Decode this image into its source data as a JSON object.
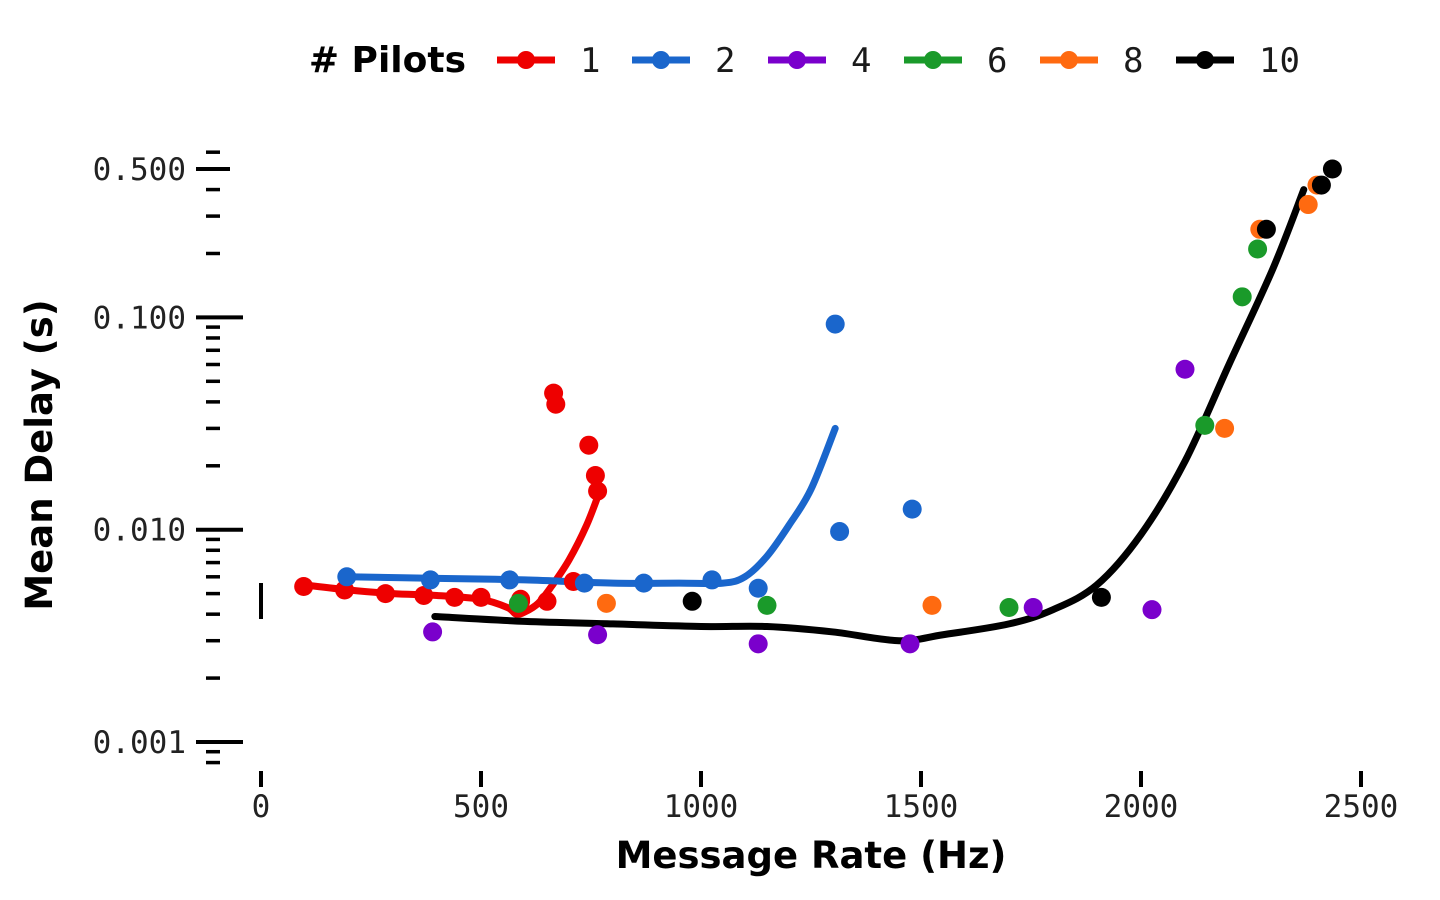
{
  "chart_data": {
    "type": "scatter",
    "xlabel": "Message Rate (Hz)",
    "ylabel": "Mean Delay (s)",
    "xlim": [
      0,
      2500
    ],
    "ylim": [
      0.001,
      0.5
    ],
    "y_scale": "log",
    "grid": false,
    "legend": {
      "title": "# Pilots",
      "placement": "top"
    },
    "x_ticks": [
      0,
      500,
      1000,
      1500,
      2000,
      2500
    ],
    "x_tick_labels": [
      "0",
      "500",
      "1000",
      "1500",
      "2000",
      "2500"
    ],
    "y_ticks": [
      0.5,
      0.1,
      0.01,
      0.001
    ],
    "y_tick_labels": [
      "0.500",
      "0.100",
      "0.010",
      "0.001"
    ],
    "series": [
      {
        "name": "1",
        "color": "#ee0000",
        "points": [
          [
            97,
            0.0054
          ],
          [
            190,
            0.0052
          ],
          [
            283,
            0.005
          ],
          [
            370,
            0.0049
          ],
          [
            440,
            0.0048
          ],
          [
            500,
            0.0048
          ],
          [
            590,
            0.0046
          ],
          [
            590,
            0.0047
          ],
          [
            650,
            0.0046
          ],
          [
            710,
            0.0057
          ],
          [
            665,
            0.044
          ],
          [
            670,
            0.039
          ],
          [
            745,
            0.025
          ],
          [
            760,
            0.018
          ],
          [
            765,
            0.0152
          ]
        ],
        "fit": [
          [
            97,
            0.0055
          ],
          [
            200,
            0.0052
          ],
          [
            300,
            0.005
          ],
          [
            400,
            0.0049
          ],
          [
            500,
            0.0047
          ],
          [
            560,
            0.0043
          ],
          [
            580,
            0.004
          ],
          [
            600,
            0.0041
          ],
          [
            630,
            0.0045
          ],
          [
            660,
            0.0054
          ],
          [
            700,
            0.0072
          ],
          [
            740,
            0.0105
          ],
          [
            770,
            0.0152
          ]
        ]
      },
      {
        "name": "2",
        "color": "#1a66cc",
        "points": [
          [
            195,
            0.006
          ],
          [
            385,
            0.0058
          ],
          [
            565,
            0.0058
          ],
          [
            735,
            0.0056
          ],
          [
            870,
            0.0056
          ],
          [
            1025,
            0.0058
          ],
          [
            1130,
            0.0053
          ],
          [
            1305,
            0.093
          ],
          [
            1315,
            0.0098
          ],
          [
            1480,
            0.0125
          ]
        ],
        "fit": [
          [
            195,
            0.006
          ],
          [
            400,
            0.0059
          ],
          [
            600,
            0.0058
          ],
          [
            800,
            0.0056
          ],
          [
            950,
            0.0056
          ],
          [
            1050,
            0.0056
          ],
          [
            1100,
            0.006
          ],
          [
            1150,
            0.0075
          ],
          [
            1200,
            0.0105
          ],
          [
            1250,
            0.0155
          ],
          [
            1305,
            0.03
          ]
        ]
      },
      {
        "name": "4",
        "color": "#7a00cc",
        "points": [
          [
            390,
            0.0033
          ],
          [
            765,
            0.0032
          ],
          [
            1130,
            0.0029
          ],
          [
            1475,
            0.0029
          ],
          [
            1755,
            0.0043
          ],
          [
            2025,
            0.0042
          ],
          [
            2100,
            0.057
          ]
        ]
      },
      {
        "name": "6",
        "color": "#1a9a2a",
        "points": [
          [
            585,
            0.0045
          ],
          [
            1150,
            0.0044
          ],
          [
            1700,
            0.0043
          ],
          [
            2145,
            0.031
          ],
          [
            2230,
            0.125
          ],
          [
            2265,
            0.21
          ]
        ]
      },
      {
        "name": "8",
        "color": "#ff6a10",
        "points": [
          [
            785,
            0.0045
          ],
          [
            1525,
            0.0044
          ],
          [
            2190,
            0.03
          ],
          [
            2270,
            0.26
          ],
          [
            2380,
            0.34
          ],
          [
            2400,
            0.42
          ]
        ]
      },
      {
        "name": "10",
        "color": "#000000",
        "points": [
          [
            980,
            0.0046
          ],
          [
            1910,
            0.0048
          ],
          [
            2285,
            0.26
          ],
          [
            2410,
            0.42
          ],
          [
            2435,
            0.5
          ]
        ],
        "fit": [
          [
            395,
            0.0039
          ],
          [
            600,
            0.0037
          ],
          [
            800,
            0.0036
          ],
          [
            1000,
            0.0035
          ],
          [
            1150,
            0.0035
          ],
          [
            1300,
            0.0033
          ],
          [
            1450,
            0.003
          ],
          [
            1550,
            0.0032
          ],
          [
            1700,
            0.0036
          ],
          [
            1800,
            0.0042
          ],
          [
            1900,
            0.0055
          ],
          [
            2000,
            0.0095
          ],
          [
            2100,
            0.021
          ],
          [
            2200,
            0.06
          ],
          [
            2300,
            0.17
          ],
          [
            2370,
            0.4
          ]
        ]
      }
    ]
  }
}
